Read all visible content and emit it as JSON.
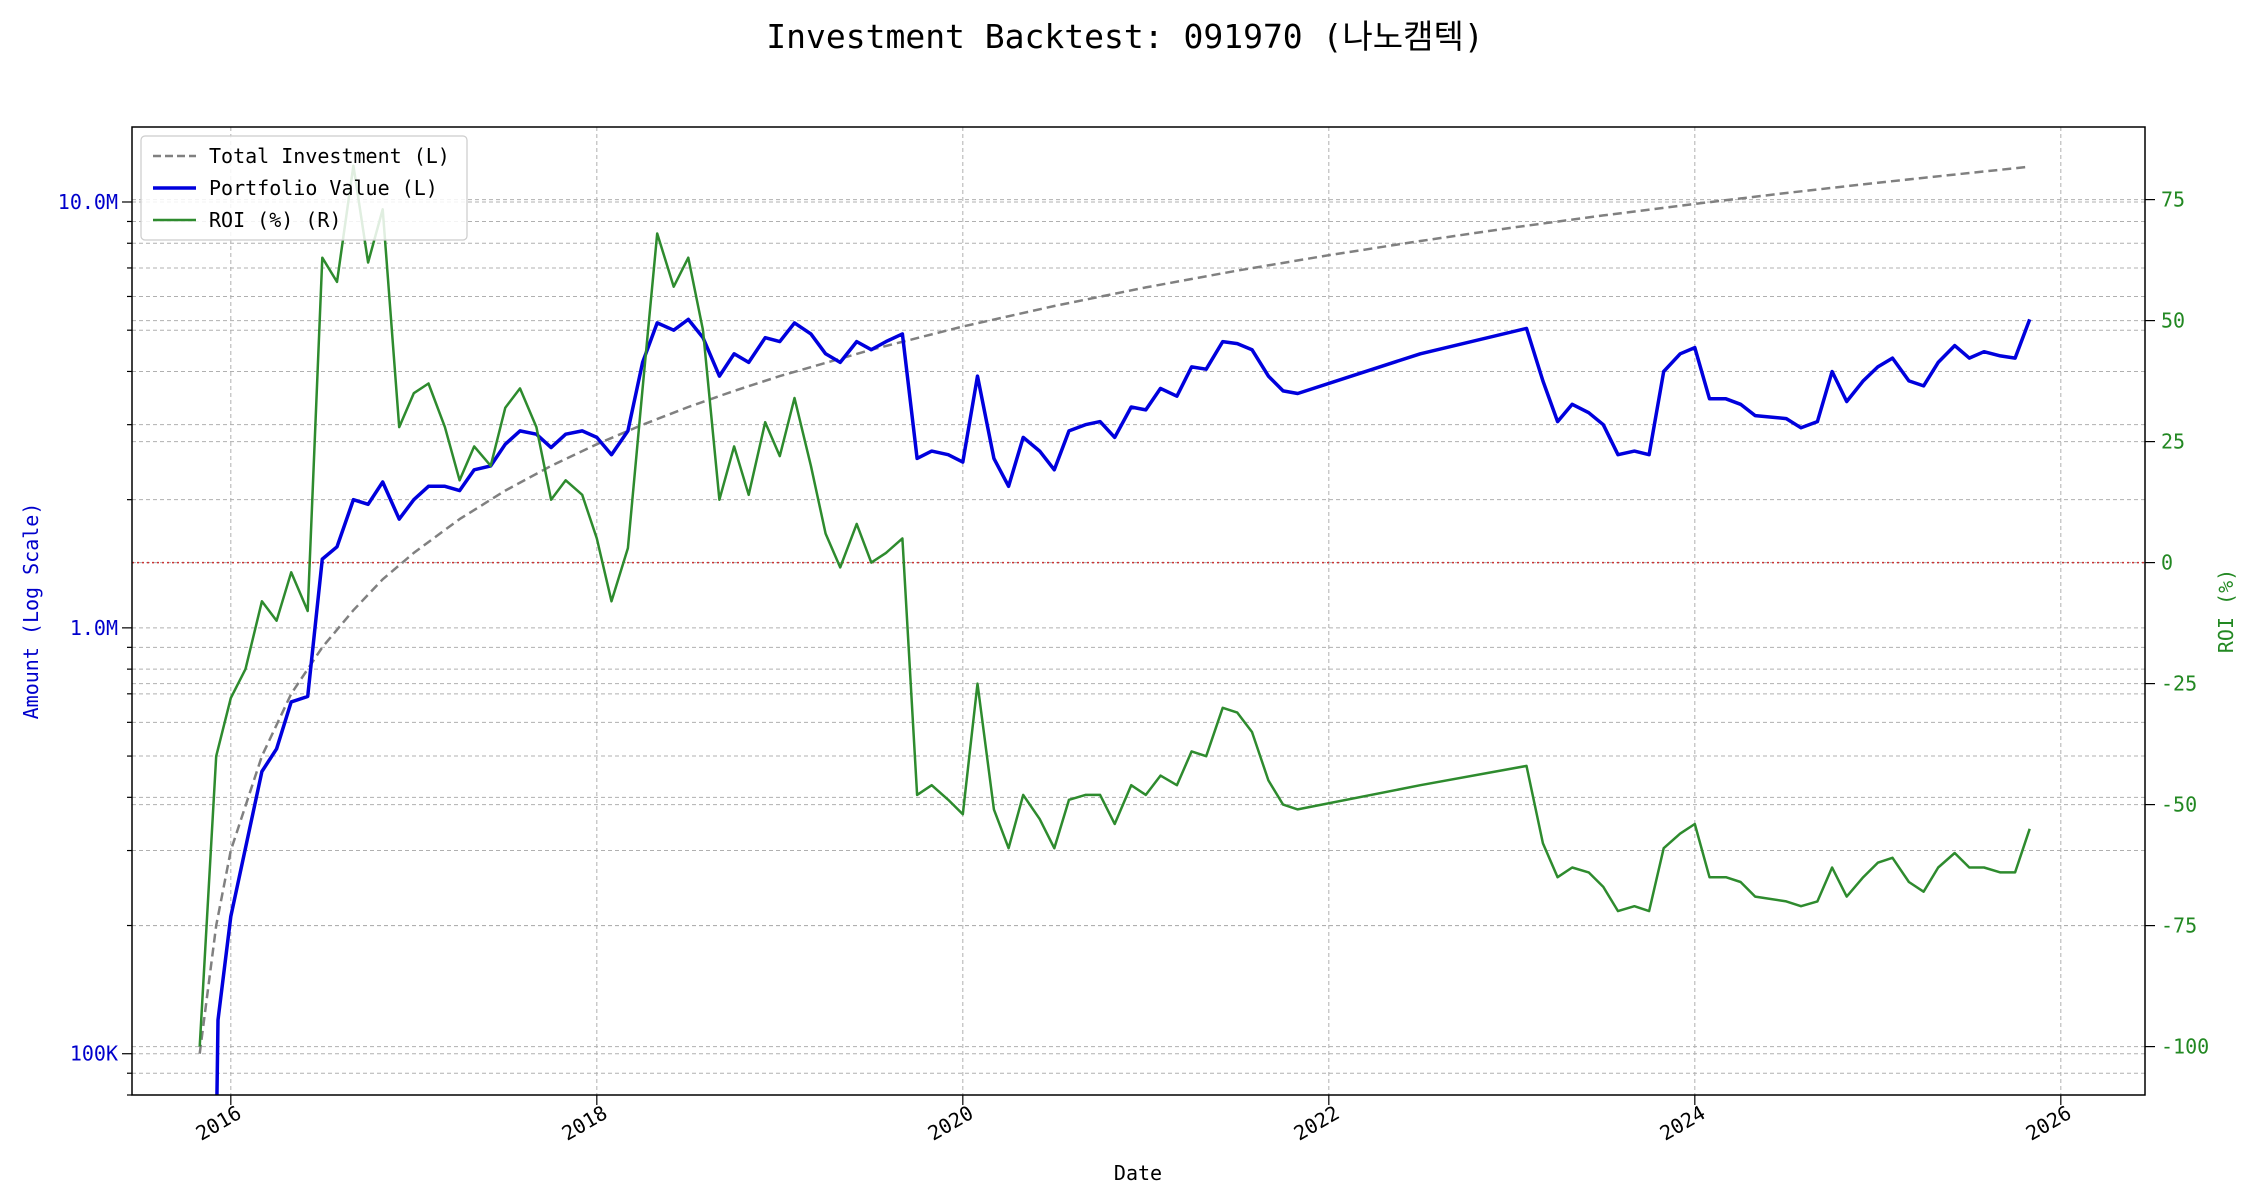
{
  "chart_data": {
    "type": "line",
    "title": "Investment Backtest: 091970 (나노캠텍)",
    "xlabel": "Date",
    "ylabel_left": "Amount (Log Scale)",
    "ylabel_right": "ROI (%)",
    "x_ticks": [
      "2016",
      "2018",
      "2020",
      "2022",
      "2024",
      "2026"
    ],
    "y_left_ticks": [
      "100K",
      "1.0M",
      "10.0M"
    ],
    "y_right_ticks": [
      "75",
      "50",
      "25",
      "0",
      "-25",
      "-50",
      "-75",
      "-100"
    ],
    "x_range": [
      2015.46,
      2026.46
    ],
    "y_left_range": [
      80000,
      15000000
    ],
    "y_left_scale": "log",
    "y_right_range": [
      -110,
      90
    ],
    "grid": true,
    "legend_position": "upper-left",
    "reference_line": {
      "axis": "right",
      "value": 0
    },
    "colors": {
      "total_investment": "#808080",
      "portfolio_value": "#0000dd",
      "roi": "#2e8b2e",
      "zero_line": "#cc3333",
      "left_axis_text": "#0000cc",
      "right_axis_text": "#228822"
    },
    "series": [
      {
        "name": "Total Investment (L)",
        "axis": "left",
        "style": "dashed",
        "points": [
          [
            2015.83,
            100000
          ],
          [
            2015.92,
            200000
          ],
          [
            2016.0,
            300000
          ],
          [
            2016.17,
            500000
          ],
          [
            2016.33,
            700000
          ],
          [
            2016.5,
            900000
          ],
          [
            2016.67,
            1100000
          ],
          [
            2016.83,
            1300000
          ],
          [
            2017.0,
            1500000
          ],
          [
            2017.25,
            1800000
          ],
          [
            2017.5,
            2100000
          ],
          [
            2017.75,
            2400000
          ],
          [
            2018.0,
            2700000
          ],
          [
            2018.25,
            3000000
          ],
          [
            2018.5,
            3300000
          ],
          [
            2018.75,
            3600000
          ],
          [
            2019.0,
            3900000
          ],
          [
            2019.5,
            4500000
          ],
          [
            2020.0,
            5100000
          ],
          [
            2020.5,
            5700000
          ],
          [
            2021.0,
            6300000
          ],
          [
            2021.5,
            6900000
          ],
          [
            2022.0,
            7500000
          ],
          [
            2022.5,
            8100000
          ],
          [
            2023.0,
            8700000
          ],
          [
            2023.5,
            9300000
          ],
          [
            2024.0,
            9900000
          ],
          [
            2024.5,
            10500000
          ],
          [
            2025.0,
            11100000
          ],
          [
            2025.5,
            11700000
          ],
          [
            2025.83,
            12100000
          ]
        ]
      },
      {
        "name": "Portfolio Value (L)",
        "axis": "left",
        "style": "solid",
        "points": [
          [
            2015.92,
            60000
          ],
          [
            2015.93,
            120000
          ],
          [
            2016.0,
            210000
          ],
          [
            2016.17,
            460000
          ],
          [
            2016.25,
            520000
          ],
          [
            2016.33,
            670000
          ],
          [
            2016.42,
            690000
          ],
          [
            2016.5,
            1450000
          ],
          [
            2016.58,
            1550000
          ],
          [
            2016.67,
            2000000
          ],
          [
            2016.75,
            1950000
          ],
          [
            2016.83,
            2200000
          ],
          [
            2016.92,
            1800000
          ],
          [
            2017.0,
            2000000
          ],
          [
            2017.08,
            2150000
          ],
          [
            2017.17,
            2150000
          ],
          [
            2017.25,
            2100000
          ],
          [
            2017.33,
            2350000
          ],
          [
            2017.42,
            2400000
          ],
          [
            2017.5,
            2700000
          ],
          [
            2017.58,
            2900000
          ],
          [
            2017.67,
            2850000
          ],
          [
            2017.75,
            2650000
          ],
          [
            2017.83,
            2850000
          ],
          [
            2017.92,
            2900000
          ],
          [
            2018.0,
            2800000
          ],
          [
            2018.08,
            2550000
          ],
          [
            2018.17,
            2900000
          ],
          [
            2018.25,
            4200000
          ],
          [
            2018.33,
            5200000
          ],
          [
            2018.42,
            5000000
          ],
          [
            2018.5,
            5300000
          ],
          [
            2018.58,
            4800000
          ],
          [
            2018.67,
            3900000
          ],
          [
            2018.75,
            4400000
          ],
          [
            2018.83,
            4200000
          ],
          [
            2018.92,
            4800000
          ],
          [
            2019.0,
            4700000
          ],
          [
            2019.08,
            5200000
          ],
          [
            2019.17,
            4900000
          ],
          [
            2019.25,
            4400000
          ],
          [
            2019.33,
            4200000
          ],
          [
            2019.42,
            4700000
          ],
          [
            2019.5,
            4500000
          ],
          [
            2019.58,
            4700000
          ],
          [
            2019.67,
            4900000
          ],
          [
            2019.75,
            2500000
          ],
          [
            2019.83,
            2600000
          ],
          [
            2019.92,
            2550000
          ],
          [
            2020.0,
            2450000
          ],
          [
            2020.08,
            3900000
          ],
          [
            2020.17,
            2500000
          ],
          [
            2020.25,
            2150000
          ],
          [
            2020.33,
            2800000
          ],
          [
            2020.42,
            2600000
          ],
          [
            2020.5,
            2350000
          ],
          [
            2020.58,
            2900000
          ],
          [
            2020.67,
            3000000
          ],
          [
            2020.75,
            3050000
          ],
          [
            2020.83,
            2800000
          ],
          [
            2020.92,
            3300000
          ],
          [
            2021.0,
            3250000
          ],
          [
            2021.08,
            3650000
          ],
          [
            2021.17,
            3500000
          ],
          [
            2021.25,
            4100000
          ],
          [
            2021.33,
            4050000
          ],
          [
            2021.42,
            4700000
          ],
          [
            2021.5,
            4650000
          ],
          [
            2021.58,
            4500000
          ],
          [
            2021.67,
            3900000
          ],
          [
            2021.75,
            3600000
          ],
          [
            2021.83,
            3550000
          ],
          [
            2022.5,
            4400000
          ],
          [
            2023.08,
            5050000
          ],
          [
            2023.17,
            3800000
          ],
          [
            2023.25,
            3050000
          ],
          [
            2023.33,
            3350000
          ],
          [
            2023.42,
            3200000
          ],
          [
            2023.5,
            3000000
          ],
          [
            2023.58,
            2550000
          ],
          [
            2023.67,
            2600000
          ],
          [
            2023.75,
            2550000
          ],
          [
            2023.83,
            4000000
          ],
          [
            2023.92,
            4400000
          ],
          [
            2024.0,
            4550000
          ],
          [
            2024.08,
            3450000
          ],
          [
            2024.17,
            3450000
          ],
          [
            2024.25,
            3350000
          ],
          [
            2024.33,
            3150000
          ],
          [
            2024.5,
            3100000
          ],
          [
            2024.58,
            2950000
          ],
          [
            2024.67,
            3050000
          ],
          [
            2024.75,
            4000000
          ],
          [
            2024.83,
            3400000
          ],
          [
            2024.92,
            3800000
          ],
          [
            2025.0,
            4100000
          ],
          [
            2025.08,
            4300000
          ],
          [
            2025.17,
            3800000
          ],
          [
            2025.25,
            3700000
          ],
          [
            2025.33,
            4200000
          ],
          [
            2025.42,
            4600000
          ],
          [
            2025.5,
            4300000
          ],
          [
            2025.58,
            4450000
          ],
          [
            2025.67,
            4350000
          ],
          [
            2025.75,
            4300000
          ],
          [
            2025.83,
            5300000
          ]
        ]
      },
      {
        "name": "ROI (%) (R)",
        "axis": "right",
        "style": "solid",
        "points": [
          [
            2015.83,
            -100
          ],
          [
            2015.92,
            -40
          ],
          [
            2016.0,
            -28
          ],
          [
            2016.08,
            -22
          ],
          [
            2016.17,
            -8
          ],
          [
            2016.25,
            -12
          ],
          [
            2016.33,
            -2
          ],
          [
            2016.42,
            -10
          ],
          [
            2016.5,
            63
          ],
          [
            2016.58,
            58
          ],
          [
            2016.67,
            82
          ],
          [
            2016.75,
            62
          ],
          [
            2016.83,
            73
          ],
          [
            2016.92,
            28
          ],
          [
            2017.0,
            35
          ],
          [
            2017.08,
            37
          ],
          [
            2017.17,
            28
          ],
          [
            2017.25,
            17
          ],
          [
            2017.33,
            24
          ],
          [
            2017.42,
            20
          ],
          [
            2017.5,
            32
          ],
          [
            2017.58,
            36
          ],
          [
            2017.67,
            28
          ],
          [
            2017.75,
            13
          ],
          [
            2017.83,
            17
          ],
          [
            2017.92,
            14
          ],
          [
            2018.0,
            5
          ],
          [
            2018.08,
            -8
          ],
          [
            2018.17,
            3
          ],
          [
            2018.25,
            36
          ],
          [
            2018.33,
            68
          ],
          [
            2018.42,
            57
          ],
          [
            2018.5,
            63
          ],
          [
            2018.58,
            48
          ],
          [
            2018.67,
            13
          ],
          [
            2018.75,
            24
          ],
          [
            2018.83,
            14
          ],
          [
            2018.92,
            29
          ],
          [
            2019.0,
            22
          ],
          [
            2019.08,
            34
          ],
          [
            2019.17,
            20
          ],
          [
            2019.25,
            6
          ],
          [
            2019.33,
            -1
          ],
          [
            2019.42,
            8
          ],
          [
            2019.5,
            0
          ],
          [
            2019.58,
            2
          ],
          [
            2019.67,
            5
          ],
          [
            2019.75,
            -48
          ],
          [
            2019.83,
            -46
          ],
          [
            2019.92,
            -49
          ],
          [
            2020.0,
            -52
          ],
          [
            2020.08,
            -25
          ],
          [
            2020.17,
            -51
          ],
          [
            2020.25,
            -59
          ],
          [
            2020.33,
            -48
          ],
          [
            2020.42,
            -53
          ],
          [
            2020.5,
            -59
          ],
          [
            2020.58,
            -49
          ],
          [
            2020.67,
            -48
          ],
          [
            2020.75,
            -48
          ],
          [
            2020.83,
            -54
          ],
          [
            2020.92,
            -46
          ],
          [
            2021.0,
            -48
          ],
          [
            2021.08,
            -44
          ],
          [
            2021.17,
            -46
          ],
          [
            2021.25,
            -39
          ],
          [
            2021.33,
            -40
          ],
          [
            2021.42,
            -30
          ],
          [
            2021.5,
            -31
          ],
          [
            2021.58,
            -35
          ],
          [
            2021.67,
            -45
          ],
          [
            2021.75,
            -50
          ],
          [
            2021.83,
            -51
          ],
          [
            2022.5,
            -46
          ],
          [
            2023.08,
            -42
          ],
          [
            2023.17,
            -58
          ],
          [
            2023.25,
            -65
          ],
          [
            2023.33,
            -63
          ],
          [
            2023.42,
            -64
          ],
          [
            2023.5,
            -67
          ],
          [
            2023.58,
            -72
          ],
          [
            2023.67,
            -71
          ],
          [
            2023.75,
            -72
          ],
          [
            2023.83,
            -59
          ],
          [
            2023.92,
            -56
          ],
          [
            2024.0,
            -54
          ],
          [
            2024.08,
            -65
          ],
          [
            2024.17,
            -65
          ],
          [
            2024.25,
            -66
          ],
          [
            2024.33,
            -69
          ],
          [
            2024.5,
            -70
          ],
          [
            2024.58,
            -71
          ],
          [
            2024.67,
            -70
          ],
          [
            2024.75,
            -63
          ],
          [
            2024.83,
            -69
          ],
          [
            2024.92,
            -65
          ],
          [
            2025.0,
            -62
          ],
          [
            2025.08,
            -61
          ],
          [
            2025.17,
            -66
          ],
          [
            2025.25,
            -68
          ],
          [
            2025.33,
            -63
          ],
          [
            2025.42,
            -60
          ],
          [
            2025.5,
            -63
          ],
          [
            2025.58,
            -63
          ],
          [
            2025.67,
            -64
          ],
          [
            2025.75,
            -64
          ],
          [
            2025.83,
            -55
          ]
        ]
      }
    ]
  }
}
